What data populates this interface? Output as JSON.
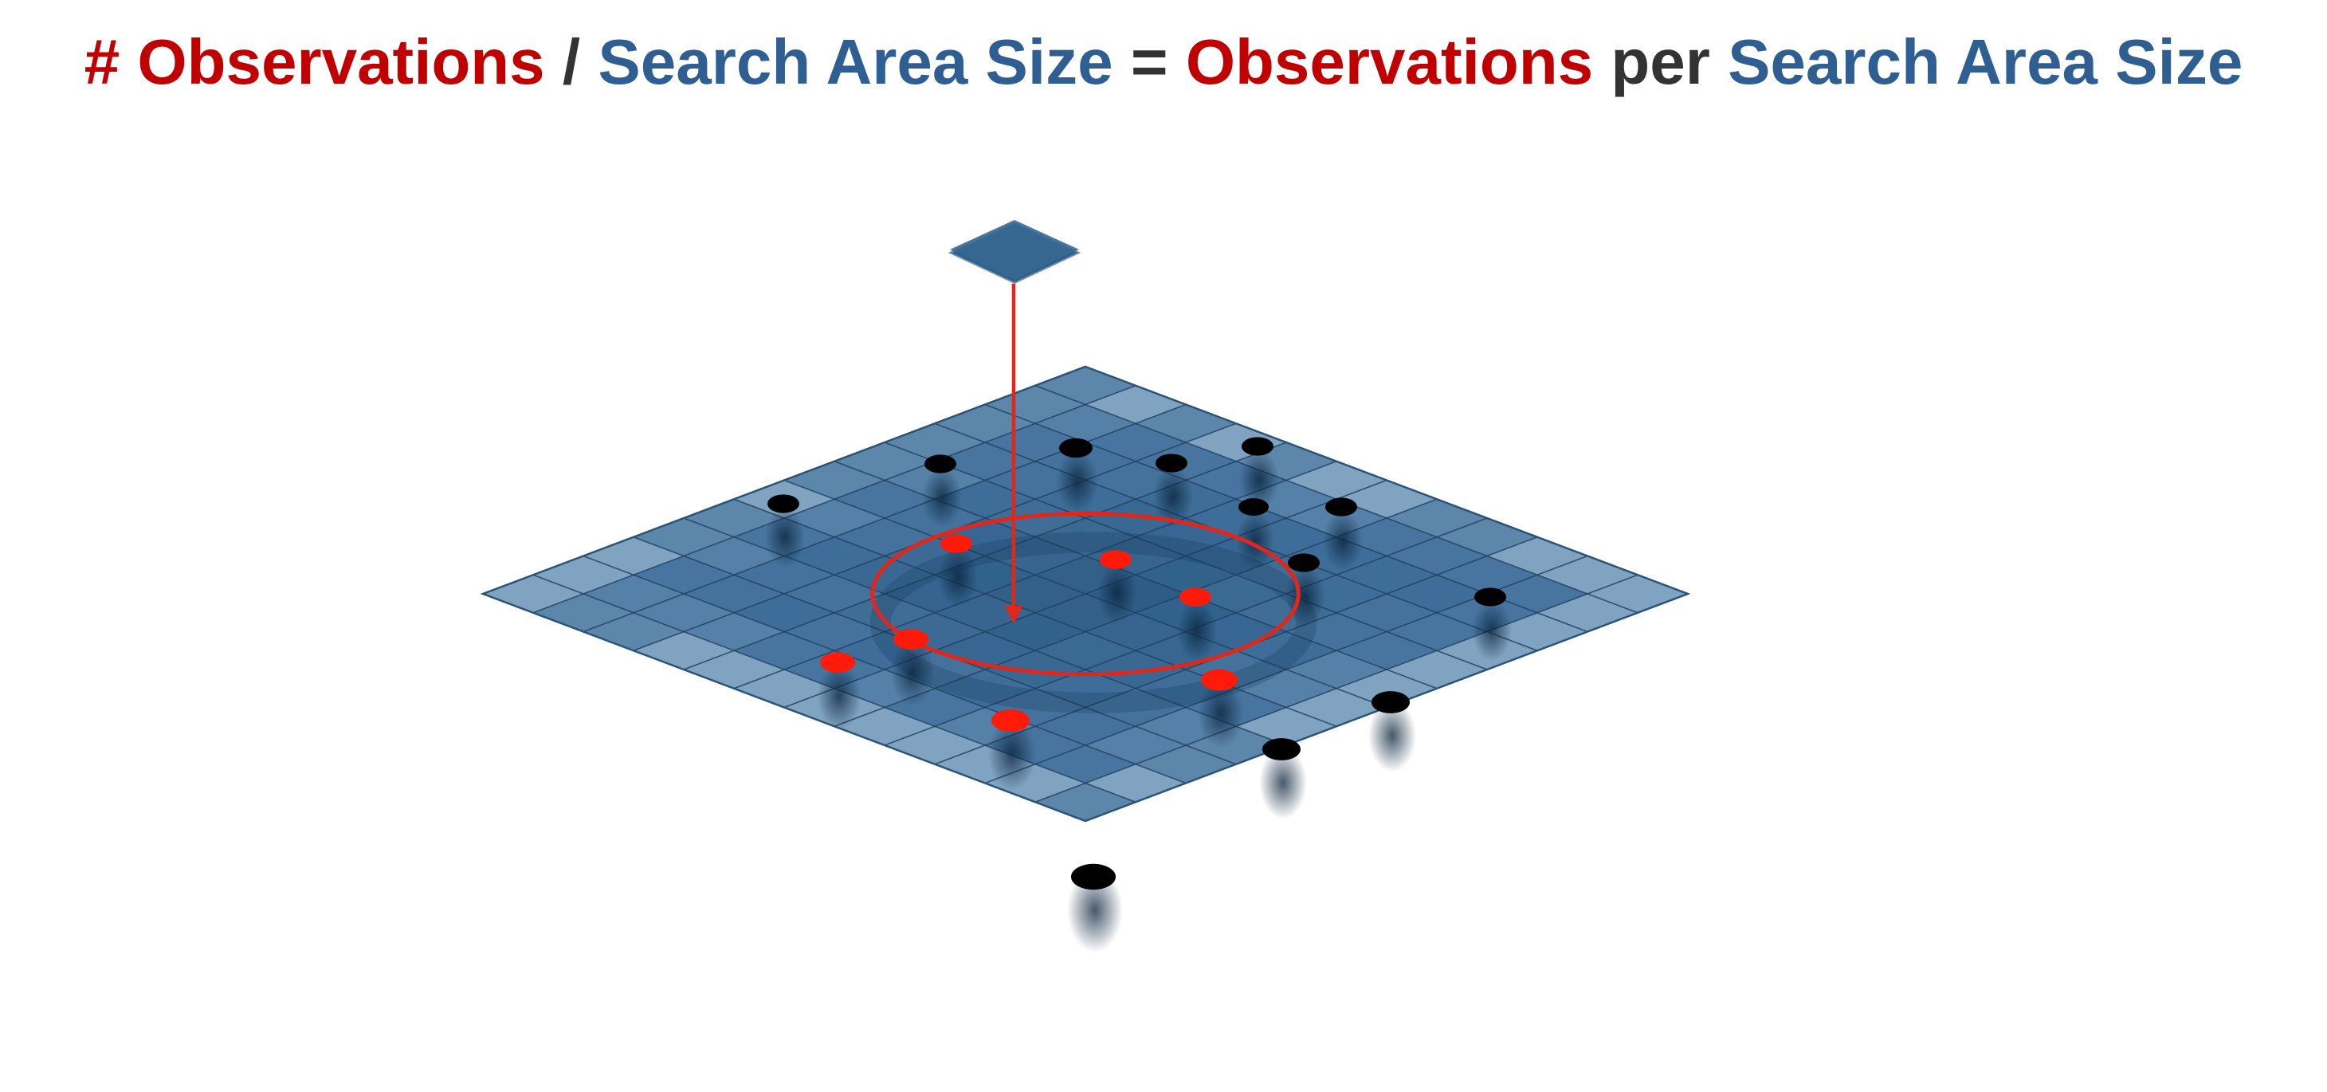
{
  "title": {
    "parts": [
      {
        "text": "# Observations",
        "role": "count"
      },
      {
        "text": " / ",
        "role": "operator"
      },
      {
        "text": "Search Area Size",
        "role": "area"
      },
      {
        "text": " = ",
        "role": "operator"
      },
      {
        "text": "Observations",
        "role": "count"
      },
      {
        "text": " per ",
        "role": "operator"
      },
      {
        "text": "Search Area Size",
        "role": "area"
      }
    ]
  },
  "colors": {
    "count": "#c00000",
    "area": "#2f5f92",
    "operator": "#333333",
    "grid_fill": "#3f6f99",
    "grid_edge_fill": "#7fa3c0",
    "grid_line": "#1f3f5f",
    "search_circle": "#e0271b",
    "inside_point": "#ff1a0a",
    "outside_point": "#000000",
    "marker_fill": "#2f5f88"
  },
  "diagram": {
    "grid_size": 12,
    "search_radius_cells": 3,
    "outside_point_count": 13,
    "inside_point_count": 7
  }
}
